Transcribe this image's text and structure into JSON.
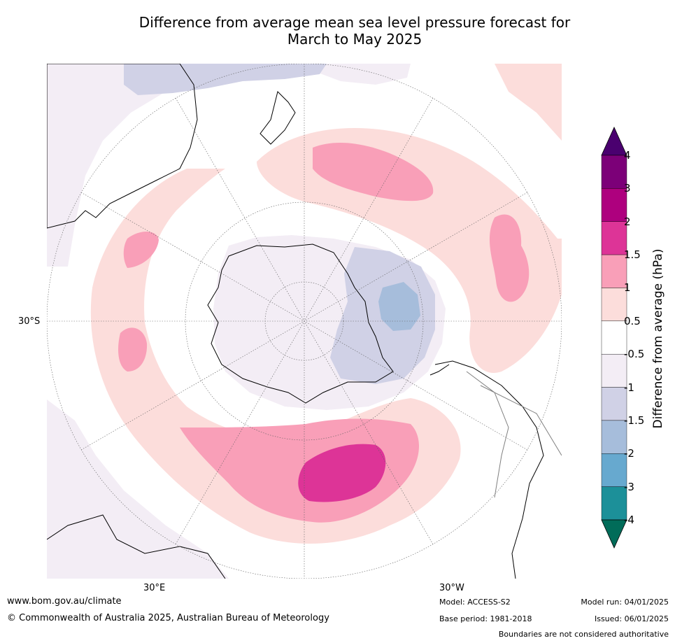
{
  "title_line1": "Difference from average mean sea level pressure forecast for",
  "title_line2": "March to May 2025",
  "map": {
    "projection": "south polar stereographic",
    "lat_labels": [
      {
        "text": "30°S"
      }
    ],
    "lon_labels": [
      {
        "text": "30°E"
      },
      {
        "text": "30°W"
      }
    ]
  },
  "colorbar": {
    "title": "Difference from average (hPa)",
    "tick_labels": [
      "4",
      "3",
      "2",
      "1.5",
      "1",
      "0.5",
      "-0.5",
      "-1",
      "-1.5",
      "-2",
      "-3",
      "-4"
    ],
    "bins": [
      {
        "range": "> 4",
        "color": "#4a006f"
      },
      {
        "range": "3 to 4",
        "color": "#7c0078"
      },
      {
        "range": "2 to 3",
        "color": "#ae007e"
      },
      {
        "range": "1.5 to 2",
        "color": "#dd3497"
      },
      {
        "range": "1 to 1.5",
        "color": "#f99fb8"
      },
      {
        "range": "0.5 to 1",
        "color": "#fcdddb"
      },
      {
        "range": "-0.5 to 0.5",
        "color": "#ffffff"
      },
      {
        "range": "-1 to -0.5",
        "color": "#f3edf5"
      },
      {
        "range": "-1.5 to -1",
        "color": "#d0d1e6"
      },
      {
        "range": "-2 to -1.5",
        "color": "#a6bddb"
      },
      {
        "range": "-3 to -2",
        "color": "#67a9cf"
      },
      {
        "range": "-4 to -3",
        "color": "#1c9099"
      },
      {
        "range": "< -4",
        "color": "#016c59"
      }
    ]
  },
  "footer": {
    "website": "www.bom.gov.au/climate",
    "copyright": "© Commonwealth of Australia 2025, Australian Bureau of Meteorology",
    "model": "Model: ACCESS-S2",
    "base_period": "Base period: 1981-2018",
    "model_run": "Model run: 04/01/2025",
    "issued": "Issued: 06/01/2025",
    "disclaimer": "Boundaries are not considered authoritative"
  }
}
